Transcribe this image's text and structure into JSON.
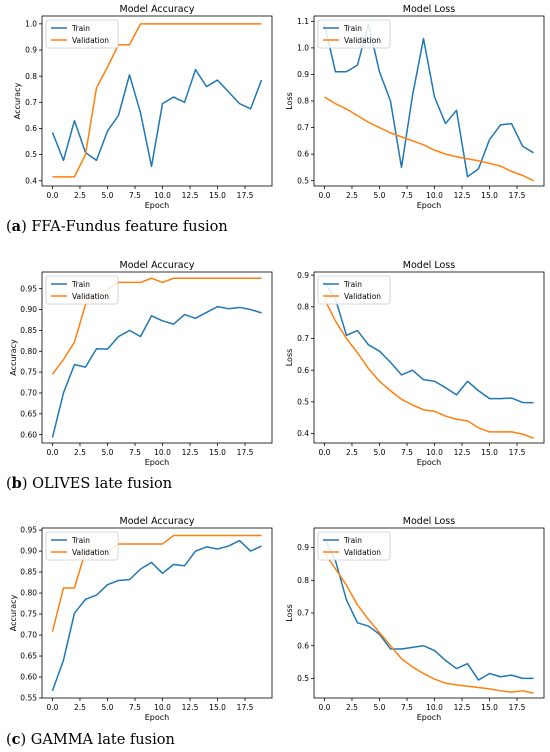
{
  "captions": [
    {
      "letter": "a",
      "text": "FFA-Fundus feature fusion"
    },
    {
      "letter": "b",
      "text": "OLIVES late fusion"
    },
    {
      "letter": "c",
      "text": "GAMMA late fusion"
    }
  ],
  "colors": {
    "train": "#1f77b4",
    "validation": "#ff7f0e"
  },
  "chart_data": [
    {
      "type": "line",
      "row": 0,
      "col": 0,
      "title": "Model Accuracy",
      "xlabel": "Epoch",
      "ylabel": "Accuracy",
      "xlim": [
        -0.95,
        19.95
      ],
      "ylim": [
        0.38,
        1.03
      ],
      "xticks": [
        0.0,
        2.5,
        5.0,
        7.5,
        10.0,
        12.5,
        15.0,
        17.5
      ],
      "xtick_labels": [
        "0.0",
        "2.5",
        "5.0",
        "7.5",
        "10.0",
        "12.5",
        "15.0",
        "17.5"
      ],
      "yticks": [
        0.4,
        0.5,
        0.6,
        0.7,
        0.8,
        0.9,
        1.0
      ],
      "ytick_labels": [
        "0.4",
        "0.5",
        "0.6",
        "0.7",
        "0.8",
        "0.9",
        "1.0"
      ],
      "legend": "upper left",
      "x": [
        0,
        1,
        2,
        3,
        4,
        5,
        6,
        7,
        8,
        9,
        10,
        11,
        12,
        13,
        14,
        15,
        16,
        17,
        18,
        19
      ],
      "series": [
        {
          "name": "Train",
          "values": [
            0.585,
            0.478,
            0.63,
            0.508,
            0.478,
            0.59,
            0.65,
            0.805,
            0.66,
            0.455,
            0.695,
            0.72,
            0.7,
            0.825,
            0.76,
            0.785,
            0.74,
            0.695,
            0.675,
            0.785
          ]
        },
        {
          "name": "Validation",
          "values": [
            0.415,
            0.415,
            0.415,
            0.5,
            0.755,
            0.835,
            0.92,
            0.92,
            1.0,
            1.0,
            1.0,
            1.0,
            1.0,
            1.0,
            1.0,
            1.0,
            1.0,
            1.0,
            1.0,
            1.0
          ]
        }
      ]
    },
    {
      "type": "line",
      "row": 0,
      "col": 1,
      "title": "Model Loss",
      "xlabel": "Epoch",
      "ylabel": "Loss",
      "xlim": [
        -0.95,
        19.95
      ],
      "ylim": [
        0.48,
        1.12
      ],
      "xticks": [
        0.0,
        2.5,
        5.0,
        7.5,
        10.0,
        12.5,
        15.0,
        17.5
      ],
      "xtick_labels": [
        "0.0",
        "2.5",
        "5.0",
        "7.5",
        "10.0",
        "12.5",
        "15.0",
        "17.5"
      ],
      "yticks": [
        0.5,
        0.6,
        0.7,
        0.8,
        0.9,
        1.0,
        1.1
      ],
      "ytick_labels": [
        "0.5",
        "0.6",
        "0.7",
        "0.8",
        "0.9",
        "1.0",
        "1.1"
      ],
      "legend": "upper left",
      "x": [
        0,
        1,
        2,
        3,
        4,
        5,
        6,
        7,
        8,
        9,
        10,
        11,
        12,
        13,
        14,
        15,
        16,
        17,
        18,
        19
      ],
      "series": [
        {
          "name": "Train",
          "values": [
            1.09,
            0.91,
            0.91,
            0.935,
            1.09,
            0.91,
            0.8,
            0.55,
            0.82,
            1.035,
            0.815,
            0.715,
            0.765,
            0.515,
            0.545,
            0.655,
            0.71,
            0.715,
            0.63,
            0.605
          ]
        },
        {
          "name": "Validation",
          "values": [
            0.815,
            0.79,
            0.77,
            0.745,
            0.72,
            0.7,
            0.68,
            0.665,
            0.65,
            0.635,
            0.615,
            0.6,
            0.59,
            0.582,
            0.575,
            0.565,
            0.555,
            0.535,
            0.52,
            0.5
          ]
        }
      ]
    },
    {
      "type": "line",
      "row": 1,
      "col": 0,
      "title": "Model Accuracy",
      "xlabel": "Epoch",
      "ylabel": "Accuracy",
      "xlim": [
        -0.95,
        19.95
      ],
      "ylim": [
        0.58,
        0.99
      ],
      "xticks": [
        0.0,
        2.5,
        5.0,
        7.5,
        10.0,
        12.5,
        15.0,
        17.5
      ],
      "xtick_labels": [
        "0.0",
        "2.5",
        "5.0",
        "7.5",
        "10.0",
        "12.5",
        "15.0",
        "17.5"
      ],
      "yticks": [
        0.6,
        0.65,
        0.7,
        0.75,
        0.8,
        0.85,
        0.9,
        0.95
      ],
      "ytick_labels": [
        "0.60",
        "0.65",
        "0.70",
        "0.75",
        "0.80",
        "0.85",
        "0.90",
        "0.95"
      ],
      "legend": "upper left",
      "x": [
        0,
        1,
        2,
        3,
        4,
        5,
        6,
        7,
        8,
        9,
        10,
        11,
        12,
        13,
        14,
        15,
        16,
        17,
        18,
        19
      ],
      "series": [
        {
          "name": "Train",
          "values": [
            0.593,
            0.7,
            0.768,
            0.762,
            0.806,
            0.805,
            0.835,
            0.85,
            0.835,
            0.885,
            0.873,
            0.865,
            0.888,
            0.879,
            0.893,
            0.907,
            0.902,
            0.905,
            0.9,
            0.892
          ]
        },
        {
          "name": "Validation",
          "values": [
            0.745,
            0.78,
            0.822,
            0.912,
            0.932,
            0.948,
            0.965,
            0.965,
            0.965,
            0.975,
            0.965,
            0.975,
            0.975,
            0.975,
            0.975,
            0.975,
            0.975,
            0.975,
            0.975,
            0.975
          ]
        }
      ]
    },
    {
      "type": "line",
      "row": 1,
      "col": 1,
      "title": "Model Loss",
      "xlabel": "Epoch",
      "ylabel": "Loss",
      "xlim": [
        -0.95,
        19.95
      ],
      "ylim": [
        0.37,
        0.91
      ],
      "xticks": [
        0.0,
        2.5,
        5.0,
        7.5,
        10.0,
        12.5,
        15.0,
        17.5
      ],
      "xtick_labels": [
        "0.0",
        "2.5",
        "5.0",
        "7.5",
        "10.0",
        "12.5",
        "15.0",
        "17.5"
      ],
      "yticks": [
        0.4,
        0.5,
        0.6,
        0.7,
        0.8,
        0.9
      ],
      "ytick_labels": [
        "0.4",
        "0.5",
        "0.6",
        "0.7",
        "0.8",
        "0.9"
      ],
      "legend": "upper left",
      "x": [
        0,
        1,
        2,
        3,
        4,
        5,
        6,
        7,
        8,
        9,
        10,
        11,
        12,
        13,
        14,
        15,
        16,
        17,
        18,
        19
      ],
      "series": [
        {
          "name": "Train",
          "values": [
            0.88,
            0.825,
            0.71,
            0.725,
            0.68,
            0.66,
            0.625,
            0.585,
            0.6,
            0.57,
            0.565,
            0.545,
            0.522,
            0.565,
            0.535,
            0.51,
            0.51,
            0.512,
            0.498,
            0.497
          ]
        },
        {
          "name": "Validation",
          "values": [
            0.825,
            0.755,
            0.7,
            0.655,
            0.605,
            0.565,
            0.535,
            0.508,
            0.49,
            0.475,
            0.47,
            0.455,
            0.445,
            0.44,
            0.418,
            0.405,
            0.405,
            0.405,
            0.398,
            0.385
          ]
        }
      ]
    },
    {
      "type": "line",
      "row": 2,
      "col": 0,
      "title": "Model Accuracy",
      "xlabel": "Epoch",
      "ylabel": "Accuracy",
      "xlim": [
        -0.95,
        19.95
      ],
      "ylim": [
        0.55,
        0.955
      ],
      "xticks": [
        0.0,
        2.5,
        5.0,
        7.5,
        10.0,
        12.5,
        15.0,
        17.5
      ],
      "xtick_labels": [
        "0.0",
        "2.5",
        "5.0",
        "7.5",
        "10.0",
        "12.5",
        "15.0",
        "17.5"
      ],
      "yticks": [
        0.55,
        0.6,
        0.65,
        0.7,
        0.75,
        0.8,
        0.85,
        0.9,
        0.95
      ],
      "ytick_labels": [
        "0.55",
        "0.60",
        "0.65",
        "0.70",
        "0.75",
        "0.80",
        "0.85",
        "0.90",
        "0.95"
      ],
      "legend": "upper left",
      "x": [
        0,
        1,
        2,
        3,
        4,
        5,
        6,
        7,
        8,
        9,
        10,
        11,
        12,
        13,
        14,
        15,
        16,
        17,
        18,
        19
      ],
      "series": [
        {
          "name": "Train",
          "values": [
            0.567,
            0.64,
            0.752,
            0.785,
            0.795,
            0.82,
            0.83,
            0.832,
            0.857,
            0.873,
            0.847,
            0.868,
            0.865,
            0.9,
            0.91,
            0.905,
            0.912,
            0.925,
            0.9,
            0.912
          ]
        },
        {
          "name": "Validation",
          "values": [
            0.708,
            0.812,
            0.812,
            0.9,
            0.9,
            0.9,
            0.917,
            0.917,
            0.917,
            0.917,
            0.917,
            0.937,
            0.937,
            0.937,
            0.937,
            0.937,
            0.937,
            0.937,
            0.937,
            0.937
          ]
        }
      ]
    },
    {
      "type": "line",
      "row": 2,
      "col": 1,
      "title": "Model Loss",
      "xlabel": "Epoch",
      "ylabel": "Loss",
      "xlim": [
        -0.95,
        19.95
      ],
      "ylim": [
        0.44,
        0.96
      ],
      "xticks": [
        0.0,
        2.5,
        5.0,
        7.5,
        10.0,
        12.5,
        15.0,
        17.5
      ],
      "xtick_labels": [
        "0.0",
        "2.5",
        "5.0",
        "7.5",
        "10.0",
        "12.5",
        "15.0",
        "17.5"
      ],
      "yticks": [
        0.5,
        0.6,
        0.7,
        0.8,
        0.9
      ],
      "ytick_labels": [
        "0.5",
        "0.6",
        "0.7",
        "0.8",
        "0.9"
      ],
      "legend": "upper left",
      "x": [
        0,
        1,
        2,
        3,
        4,
        5,
        6,
        7,
        8,
        9,
        10,
        11,
        12,
        13,
        14,
        15,
        16,
        17,
        18,
        19
      ],
      "series": [
        {
          "name": "Train",
          "values": [
            0.93,
            0.86,
            0.74,
            0.67,
            0.66,
            0.635,
            0.59,
            0.59,
            0.595,
            0.6,
            0.585,
            0.555,
            0.53,
            0.545,
            0.495,
            0.515,
            0.505,
            0.51,
            0.5,
            0.5
          ]
        },
        {
          "name": "Validation",
          "values": [
            0.885,
            0.835,
            0.785,
            0.725,
            0.68,
            0.64,
            0.6,
            0.56,
            0.535,
            0.515,
            0.498,
            0.485,
            0.48,
            0.476,
            0.472,
            0.468,
            0.462,
            0.458,
            0.462,
            0.455
          ]
        }
      ]
    }
  ]
}
